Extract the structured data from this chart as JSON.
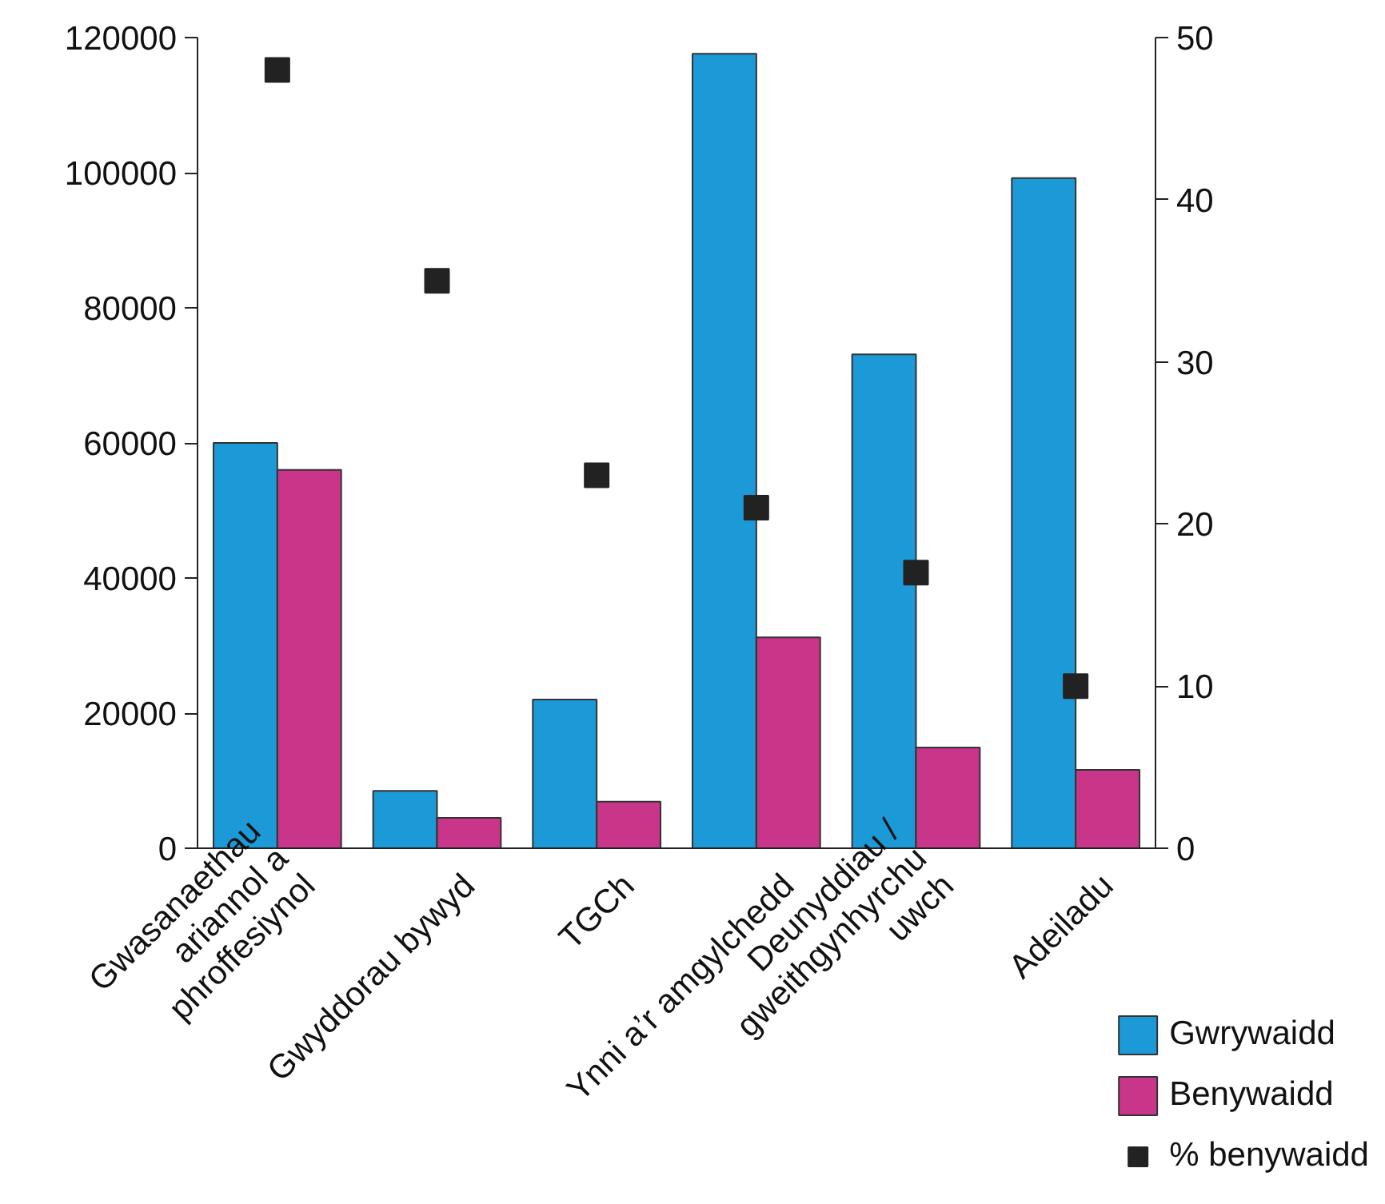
{
  "chart_data": {
    "type": "bar",
    "categories": [
      "Gwasanaethau\nariannol a\nphroffesiynol",
      "Gwyddorau bywyd",
      "TGCh",
      "Ynni a’r amgylchedd",
      "Deunyddiau /\ngweithgynhyrchu\nuwch",
      "Adeiladu"
    ],
    "series": [
      {
        "name": "Gwrywaidd",
        "color": "#1b9ad7",
        "values": [
          60000,
          8500,
          22000,
          117600,
          73100,
          99200
        ]
      },
      {
        "name": "Benywaidd",
        "color": "#c93589",
        "values": [
          56000,
          4500,
          6900,
          31200,
          14900,
          11600
        ]
      },
      {
        "name": "% benywaidd",
        "type": "scatter",
        "axis": "y2",
        "color": "#222222",
        "values": [
          48,
          35,
          23,
          21,
          17,
          10
        ]
      }
    ],
    "ylim": [
      0,
      120000
    ],
    "yticks": [
      0,
      20000,
      40000,
      60000,
      80000,
      100000,
      120000
    ],
    "y2lim": [
      0,
      50
    ],
    "y2ticks": [
      0,
      10,
      20,
      30,
      40,
      50
    ],
    "marker": "square",
    "grid": false,
    "legend": "bottom right"
  }
}
